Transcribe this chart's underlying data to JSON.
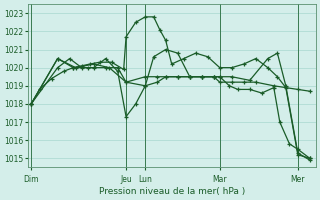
{
  "xlabel": "Pression niveau de la mer( hPa )",
  "bg_color": "#d4eeea",
  "grid_color": "#a8d8d0",
  "line_color": "#1a5c28",
  "vline_color": "#3a7a50",
  "ylim": [
    1014.5,
    1023.5
  ],
  "yticks": [
    1015,
    1016,
    1017,
    1018,
    1019,
    1020,
    1021,
    1022,
    1023
  ],
  "xlim": [
    0,
    24
  ],
  "day_labels": [
    "Dim",
    "Jeu",
    "Lun",
    "Mar",
    "Mer"
  ],
  "day_positions": [
    0.3,
    8.2,
    9.8,
    16.0,
    22.5
  ],
  "series1_x": [
    0.3,
    1.0,
    2.0,
    3.0,
    3.8,
    4.5,
    5.2,
    6.0,
    7.0,
    8.0,
    8.2,
    9.0,
    9.8,
    10.5,
    11.0,
    11.5,
    12.0,
    13.0,
    14.0,
    15.0,
    16.0,
    17.0,
    18.0,
    19.0,
    20.0,
    20.8,
    21.5,
    22.5,
    23.5
  ],
  "series1_y": [
    1018.0,
    1018.8,
    1019.4,
    1019.8,
    1020.0,
    1020.1,
    1020.2,
    1020.3,
    1020.3,
    1019.9,
    1021.7,
    1022.5,
    1022.8,
    1022.8,
    1022.1,
    1021.5,
    1020.2,
    1020.5,
    1020.8,
    1020.6,
    1020.0,
    1020.0,
    1020.2,
    1020.5,
    1020.0,
    1019.5,
    1018.9,
    1015.2,
    1015.0
  ],
  "series2_x": [
    0.3,
    2.5,
    4.0,
    5.5,
    6.8,
    8.2,
    9.8,
    10.8,
    11.5,
    12.5,
    13.5,
    14.5,
    15.5,
    16.0,
    17.0,
    18.0,
    19.0,
    20.5,
    22.5,
    23.5
  ],
  "series2_y": [
    1018.0,
    1020.5,
    1020.0,
    1020.2,
    1020.0,
    1019.2,
    1019.5,
    1019.5,
    1019.5,
    1019.5,
    1019.5,
    1019.5,
    1019.5,
    1019.2,
    1019.2,
    1019.2,
    1019.2,
    1019.0,
    1018.8,
    1018.7
  ],
  "series3_x": [
    0.3,
    2.5,
    3.5,
    4.5,
    5.5,
    6.5,
    7.5,
    8.2,
    9.0,
    9.8,
    10.5,
    11.5,
    12.5,
    13.5,
    14.5,
    15.5,
    16.0,
    17.0,
    18.5,
    20.0,
    20.8,
    21.5,
    22.5,
    23.5
  ],
  "series3_y": [
    1018.0,
    1020.0,
    1020.5,
    1020.0,
    1020.0,
    1020.5,
    1019.8,
    1017.3,
    1018.0,
    1019.0,
    1020.6,
    1021.0,
    1020.8,
    1019.5,
    1019.5,
    1019.5,
    1019.5,
    1019.5,
    1019.3,
    1020.5,
    1020.8,
    1019.0,
    1015.3,
    1014.9
  ],
  "series4_x": [
    0.3,
    2.5,
    3.8,
    5.0,
    6.5,
    7.5,
    8.2,
    9.8,
    10.8,
    11.5,
    12.5,
    13.5,
    14.5,
    15.5,
    16.0,
    16.8,
    17.5,
    18.5,
    19.5,
    20.5,
    21.0,
    21.8,
    22.5,
    23.5
  ],
  "series4_y": [
    1018.0,
    1020.5,
    1020.0,
    1020.0,
    1020.0,
    1020.0,
    1019.2,
    1019.0,
    1019.2,
    1019.5,
    1019.5,
    1019.5,
    1019.5,
    1019.5,
    1019.5,
    1019.0,
    1018.8,
    1018.8,
    1018.6,
    1018.9,
    1017.0,
    1015.8,
    1015.5,
    1015.0
  ]
}
